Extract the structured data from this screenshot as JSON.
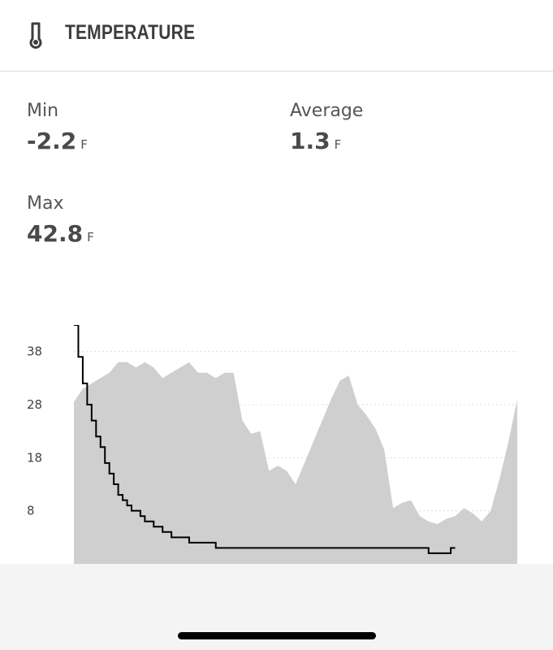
{
  "header": {
    "title": "TEMPERATURE",
    "icon": "thermometer-icon"
  },
  "stats": {
    "min": {
      "label": "Min",
      "value": "-2.2",
      "unit": "F"
    },
    "average": {
      "label": "Average",
      "value": "1.3",
      "unit": "F"
    },
    "max": {
      "label": "Max",
      "value": "42.8",
      "unit": "F"
    }
  },
  "chart_data": {
    "type": "area",
    "title": "",
    "xlabel": "",
    "ylabel": "",
    "ylim": [
      -2,
      43
    ],
    "y_ticks": [
      8,
      18,
      28,
      38
    ],
    "grid": true,
    "colors": {
      "area": "#cfcfcf",
      "line": "#000000",
      "grid": "#dddddd"
    },
    "series": [
      {
        "type": "area",
        "x": [
          0,
          2,
          4,
          6,
          8,
          10,
          12,
          14,
          16,
          18,
          20,
          22,
          24,
          26,
          28,
          30,
          32,
          34,
          36,
          38,
          40,
          42,
          44,
          46,
          48,
          50,
          52,
          54,
          56,
          58,
          60,
          62,
          64,
          66,
          68,
          70,
          72,
          74,
          76,
          78,
          80,
          82,
          84,
          86,
          88,
          90,
          92,
          94,
          96,
          98,
          100
        ],
        "y": [
          28.5,
          31,
          32,
          33,
          34,
          36,
          36,
          35,
          36,
          35,
          33,
          34,
          35,
          36,
          34,
          34,
          33,
          34,
          34,
          25,
          22.5,
          23,
          15.5,
          16.5,
          15.5,
          13,
          17,
          21,
          25,
          29,
          32.5,
          33.5,
          28,
          26,
          23.5,
          19.5,
          8.5,
          9.5,
          10,
          7,
          6,
          5.5,
          6.5,
          7,
          8.5,
          7.5,
          6,
          8,
          14,
          21,
          29
        ]
      },
      {
        "type": "step",
        "x": [
          0,
          1,
          2,
          3,
          4,
          5,
          6,
          7,
          8,
          9,
          10,
          11,
          12,
          13,
          14,
          15,
          16,
          18,
          20,
          22,
          24,
          26,
          28,
          30,
          32,
          34,
          36,
          38,
          40,
          80,
          84,
          85,
          86
        ],
        "y": [
          43,
          37,
          32,
          28,
          25,
          22,
          20,
          17,
          15,
          13,
          11,
          10,
          9,
          8,
          8,
          7,
          6,
          5,
          4,
          3,
          3,
          2,
          2,
          2,
          1,
          1,
          1,
          1,
          1,
          0,
          0,
          1,
          1
        ]
      }
    ]
  },
  "footer": {
    "home_indicator": "home-indicator"
  }
}
